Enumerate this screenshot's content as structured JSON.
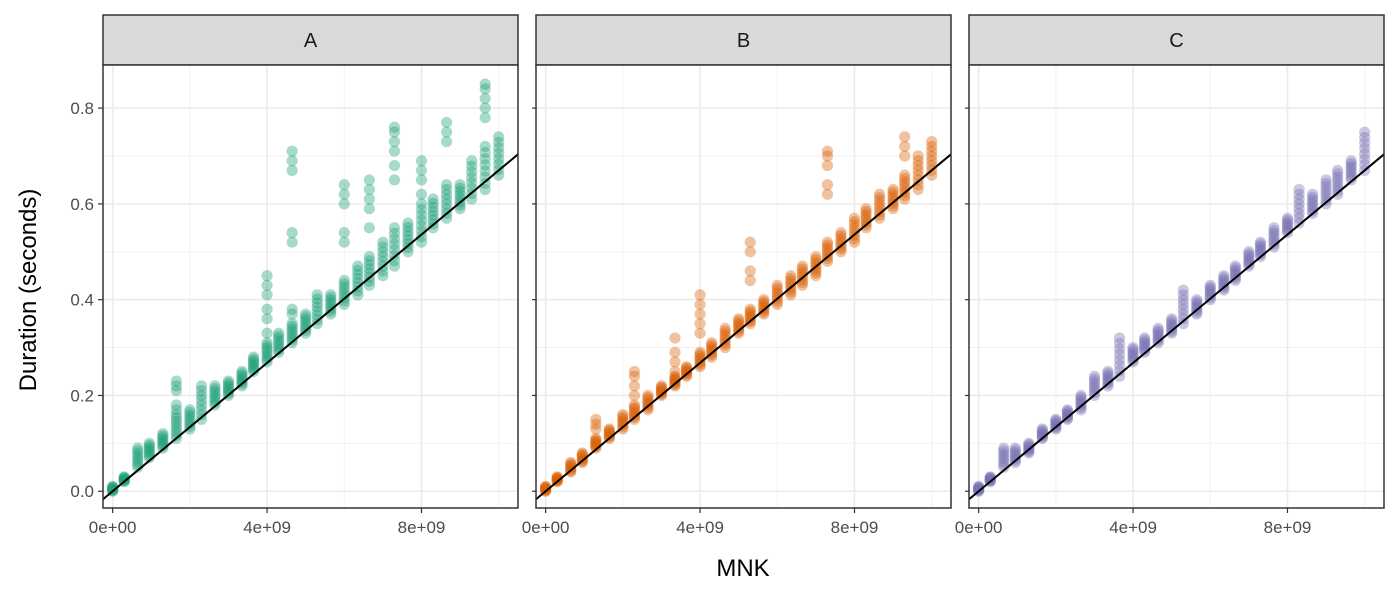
{
  "chart_data": {
    "type": "scatter",
    "xlabel": "MNK",
    "ylabel": "Duration (seconds)",
    "xlim": [
      -250000000,
      10500000000
    ],
    "ylim": [
      -0.035,
      0.89
    ],
    "x_ticks": [
      0,
      4000000000,
      8000000000
    ],
    "x_tick_labels": [
      "0e+00",
      "4e+09",
      "8e+09"
    ],
    "y_ticks": [
      0.0,
      0.2,
      0.4,
      0.6,
      0.8
    ],
    "y_tick_labels": [
      "0.0",
      "0.2",
      "0.4",
      "0.6",
      "0.8"
    ],
    "fit_line": {
      "intercept": 0.0,
      "slope_per_unit": 6.7e-11
    },
    "panels": [
      {
        "name": "A",
        "color": "#1B9E77",
        "base_slope": 6.65e-11,
        "x": [
          0,
          300000000,
          650000000,
          950000000,
          1300000000,
          1650000000,
          2000000000,
          2300000000,
          2650000000,
          3000000000,
          3350000000,
          3650000000,
          4000000000,
          4300000000,
          4650000000,
          5000000000,
          5300000000,
          5650000000,
          6000000000,
          6350000000,
          6650000000,
          7000000000,
          7300000000,
          7650000000,
          8000000000,
          8300000000,
          8650000000,
          9000000000,
          9300000000,
          9650000000,
          10000000000
        ],
        "y_low": [
          0.0,
          0.02,
          0.05,
          0.07,
          0.09,
          0.11,
          0.13,
          0.15,
          0.18,
          0.2,
          0.22,
          0.25,
          0.27,
          0.29,
          0.31,
          0.33,
          0.35,
          0.37,
          0.39,
          0.41,
          0.43,
          0.45,
          0.47,
          0.5,
          0.52,
          0.55,
          0.57,
          0.59,
          0.61,
          0.63,
          0.66
        ],
        "y_high": [
          0.01,
          0.03,
          0.09,
          0.1,
          0.12,
          0.16,
          0.17,
          0.22,
          0.22,
          0.23,
          0.25,
          0.28,
          0.31,
          0.33,
          0.35,
          0.37,
          0.41,
          0.41,
          0.44,
          0.47,
          0.49,
          0.52,
          0.55,
          0.56,
          0.6,
          0.61,
          0.64,
          0.64,
          0.69,
          0.72,
          0.74
        ],
        "outliers": [
          {
            "x": 1650000000,
            "y": [
              0.17,
              0.18,
              0.21,
              0.22,
              0.23
            ]
          },
          {
            "x": 4000000000,
            "y": [
              0.33,
              0.36,
              0.38,
              0.41,
              0.43,
              0.45
            ]
          },
          {
            "x": 4650000000,
            "y": [
              0.37,
              0.38,
              0.52,
              0.54,
              0.67,
              0.69,
              0.71
            ]
          },
          {
            "x": 6000000000,
            "y": [
              0.52,
              0.54,
              0.6,
              0.62,
              0.64
            ]
          },
          {
            "x": 6650000000,
            "y": [
              0.55,
              0.59,
              0.61,
              0.63,
              0.65
            ]
          },
          {
            "x": 7300000000,
            "y": [
              0.65,
              0.68,
              0.71,
              0.73,
              0.75,
              0.76
            ]
          },
          {
            "x": 8000000000,
            "y": [
              0.62,
              0.65,
              0.67,
              0.69
            ]
          },
          {
            "x": 8650000000,
            "y": [
              0.73,
              0.75,
              0.77
            ]
          },
          {
            "x": 9650000000,
            "y": [
              0.78,
              0.8,
              0.82,
              0.84,
              0.85
            ]
          }
        ]
      },
      {
        "name": "B",
        "color": "#D95F02",
        "base_slope": 6.75e-11,
        "x": [
          0,
          300000000,
          650000000,
          950000000,
          1300000000,
          1650000000,
          2000000000,
          2300000000,
          2650000000,
          3000000000,
          3350000000,
          3650000000,
          4000000000,
          4300000000,
          4650000000,
          5000000000,
          5300000000,
          5650000000,
          6000000000,
          6350000000,
          6650000000,
          7000000000,
          7300000000,
          7650000000,
          8000000000,
          8300000000,
          8650000000,
          9000000000,
          9300000000,
          9650000000,
          10000000000
        ],
        "y_low": [
          0.0,
          0.02,
          0.04,
          0.06,
          0.09,
          0.11,
          0.13,
          0.15,
          0.17,
          0.2,
          0.22,
          0.24,
          0.26,
          0.28,
          0.3,
          0.33,
          0.35,
          0.37,
          0.39,
          0.41,
          0.43,
          0.45,
          0.48,
          0.5,
          0.52,
          0.55,
          0.57,
          0.59,
          0.61,
          0.63,
          0.66
        ],
        "y_high": [
          0.01,
          0.03,
          0.06,
          0.08,
          0.11,
          0.13,
          0.16,
          0.18,
          0.2,
          0.22,
          0.24,
          0.26,
          0.29,
          0.31,
          0.34,
          0.36,
          0.38,
          0.4,
          0.43,
          0.45,
          0.47,
          0.49,
          0.52,
          0.54,
          0.57,
          0.59,
          0.62,
          0.63,
          0.66,
          0.7,
          0.73
        ],
        "outliers": [
          {
            "x": 1300000000,
            "y": [
              0.13,
              0.14,
              0.15
            ]
          },
          {
            "x": 2300000000,
            "y": [
              0.2,
              0.22,
              0.24,
              0.25
            ]
          },
          {
            "x": 3350000000,
            "y": [
              0.25,
              0.27,
              0.29,
              0.32
            ]
          },
          {
            "x": 4000000000,
            "y": [
              0.33,
              0.35,
              0.37,
              0.39,
              0.41
            ]
          },
          {
            "x": 5300000000,
            "y": [
              0.44,
              0.46,
              0.5,
              0.52
            ]
          },
          {
            "x": 7300000000,
            "y": [
              0.62,
              0.64,
              0.68,
              0.7,
              0.71
            ]
          },
          {
            "x": 9300000000,
            "y": [
              0.7,
              0.72,
              0.74
            ]
          }
        ]
      },
      {
        "name": "C",
        "color": "#7570B3",
        "base_slope": 6.7e-11,
        "x": [
          0,
          300000000,
          650000000,
          950000000,
          1300000000,
          1650000000,
          2000000000,
          2300000000,
          2650000000,
          3000000000,
          3350000000,
          3650000000,
          4000000000,
          4300000000,
          4650000000,
          5000000000,
          5300000000,
          5650000000,
          6000000000,
          6350000000,
          6650000000,
          7000000000,
          7300000000,
          7650000000,
          8000000000,
          8300000000,
          8650000000,
          9000000000,
          9300000000,
          9650000000,
          10000000000
        ],
        "y_low": [
          0.0,
          0.02,
          0.05,
          0.06,
          0.08,
          0.11,
          0.13,
          0.15,
          0.17,
          0.2,
          0.22,
          0.24,
          0.27,
          0.29,
          0.31,
          0.33,
          0.35,
          0.37,
          0.4,
          0.42,
          0.44,
          0.47,
          0.49,
          0.51,
          0.54,
          0.56,
          0.58,
          0.6,
          0.62,
          0.65,
          0.67
        ],
        "y_high": [
          0.01,
          0.03,
          0.09,
          0.09,
          0.1,
          0.13,
          0.15,
          0.17,
          0.2,
          0.24,
          0.25,
          0.32,
          0.3,
          0.32,
          0.34,
          0.36,
          0.42,
          0.4,
          0.43,
          0.45,
          0.47,
          0.5,
          0.52,
          0.55,
          0.57,
          0.63,
          0.62,
          0.65,
          0.67,
          0.69,
          0.75
        ],
        "outliers": []
      }
    ]
  }
}
